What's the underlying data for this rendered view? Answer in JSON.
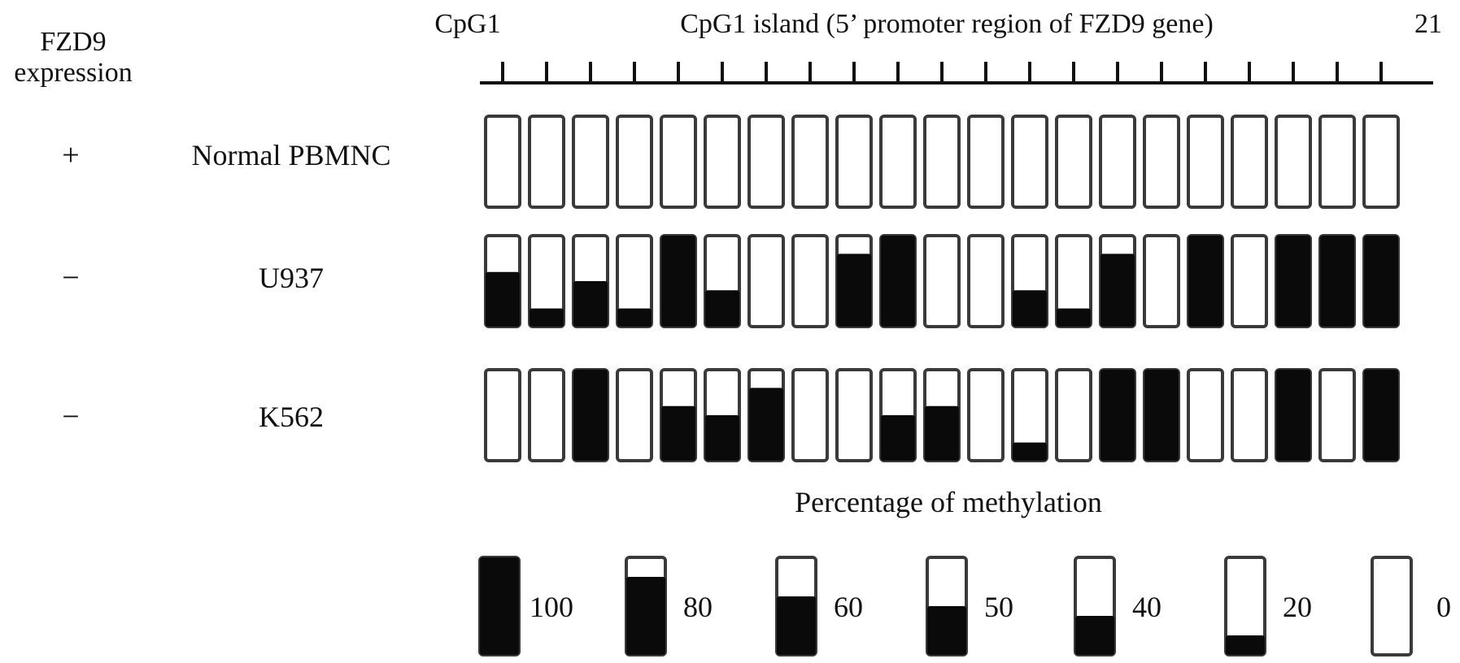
{
  "labels": {
    "expression_header_line1": "FZD9",
    "expression_header_line2": "expression",
    "cpg_start": "CpG1",
    "island_title": "CpG1 island  (5’ promoter region of FZD9 gene)",
    "cpg_end": "21",
    "legend_title": "Percentage of methylation"
  },
  "cpg_site_count": 21,
  "samples": [
    {
      "name": "Normal PBMNC",
      "expression": "+",
      "methylation_percent": [
        0,
        0,
        0,
        0,
        0,
        0,
        0,
        0,
        0,
        0,
        0,
        0,
        0,
        0,
        0,
        0,
        0,
        0,
        0,
        0,
        0
      ]
    },
    {
      "name": "U937",
      "expression": "−",
      "methylation_percent": [
        60,
        20,
        50,
        20,
        100,
        40,
        0,
        0,
        80,
        100,
        0,
        0,
        40,
        20,
        80,
        0,
        100,
        0,
        100,
        100,
        100
      ]
    },
    {
      "name": "K562",
      "expression": "−",
      "methylation_percent": [
        0,
        0,
        100,
        0,
        60,
        50,
        80,
        0,
        0,
        50,
        60,
        0,
        20,
        0,
        100,
        100,
        0,
        0,
        100,
        0,
        100
      ]
    }
  ],
  "legend": [
    {
      "percent": 100,
      "label": "100"
    },
    {
      "percent": 80,
      "label": "80"
    },
    {
      "percent": 60,
      "label": "60"
    },
    {
      "percent": 50,
      "label": "50"
    },
    {
      "percent": 40,
      "label": "40"
    },
    {
      "percent": 20,
      "label": "20"
    },
    {
      "percent": 0,
      "label": "0"
    }
  ],
  "colors": {
    "methylated": "#0a0a0a",
    "unmethylated": "#ffffff",
    "outline": "#3a3a3a"
  }
}
